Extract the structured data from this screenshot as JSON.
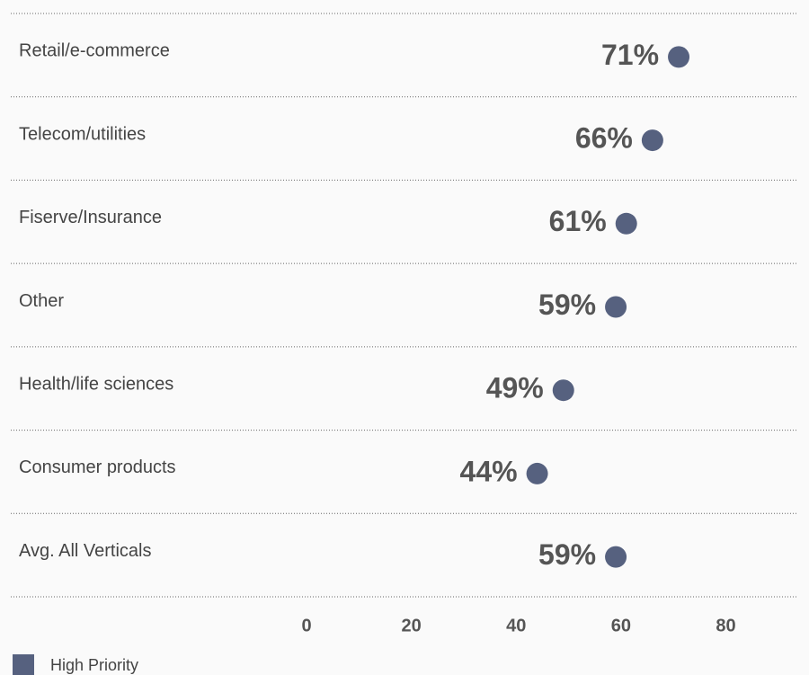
{
  "chart_data": {
    "type": "dot",
    "categories": [
      "Retail/e-commerce",
      "Telecom/utilities",
      "Fiserve/Insurance",
      "Other",
      "Health/life sciences",
      "Consumer products",
      "Avg. All Verticals"
    ],
    "series": [
      {
        "name": "High Priority",
        "color": "#56617f",
        "values": [
          71,
          66,
          61,
          59,
          49,
          44,
          59
        ],
        "value_labels": [
          "71%",
          "66%",
          "61%",
          "59%",
          "49%",
          "44%",
          "59%"
        ]
      }
    ],
    "xlim": [
      0,
      95
    ],
    "xticks": [
      0,
      20,
      40,
      60,
      80
    ],
    "legend": "bottom-left"
  }
}
